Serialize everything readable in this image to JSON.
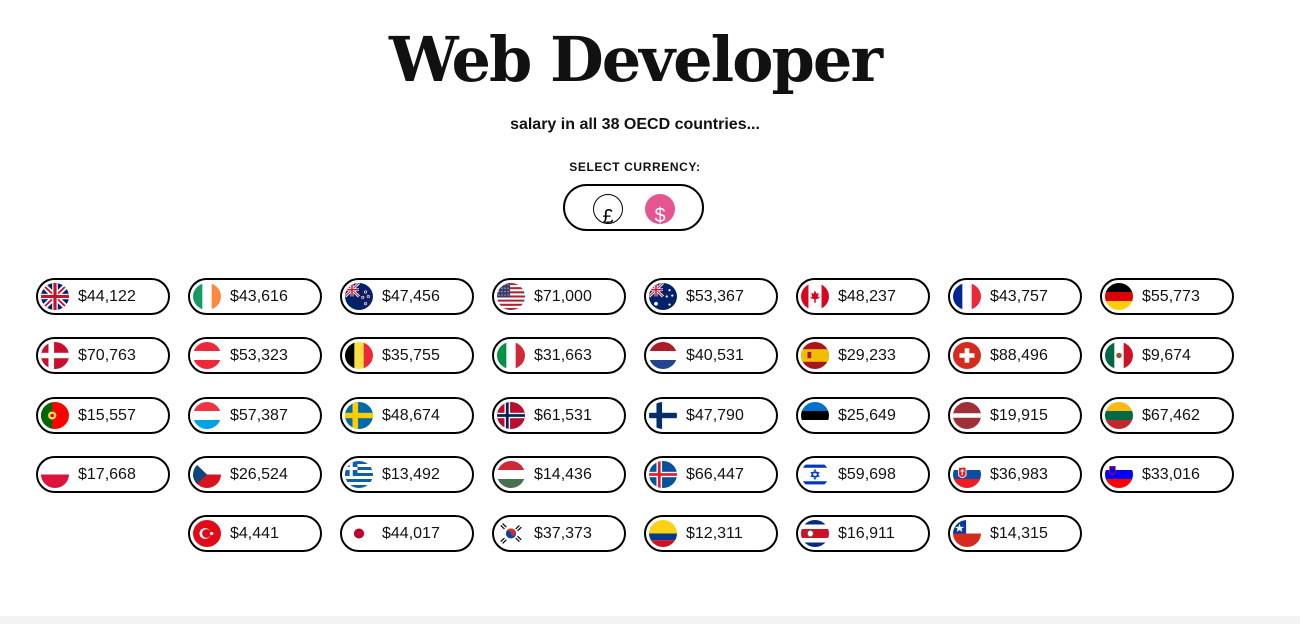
{
  "header": {
    "title": "Web Developer",
    "subtitle": "salary in all 38 OECD countries...",
    "currency_label": "SELECT CURRENCY:"
  },
  "currency": {
    "options": [
      {
        "symbol": "£",
        "icon": "pound-icon",
        "selected": false
      },
      {
        "symbol": "$",
        "icon": "dollar-icon",
        "selected": true
      }
    ],
    "accent_color": "#e45592"
  },
  "countries": [
    {
      "flag": "uk-flag-icon",
      "salary": "$44,122"
    },
    {
      "flag": "ireland-flag-icon",
      "salary": "$43,616"
    },
    {
      "flag": "new-zealand-flag-icon",
      "salary": "$47,456"
    },
    {
      "flag": "usa-flag-icon",
      "salary": "$71,000"
    },
    {
      "flag": "australia-flag-icon",
      "salary": "$53,367"
    },
    {
      "flag": "canada-flag-icon",
      "salary": "$48,237"
    },
    {
      "flag": "france-flag-icon",
      "salary": "$43,757"
    },
    {
      "flag": "germany-flag-icon",
      "salary": "$55,773"
    },
    {
      "flag": "denmark-flag-icon",
      "salary": "$70,763"
    },
    {
      "flag": "austria-flag-icon",
      "salary": "$53,323"
    },
    {
      "flag": "belgium-flag-icon",
      "salary": "$35,755"
    },
    {
      "flag": "italy-flag-icon",
      "salary": "$31,663"
    },
    {
      "flag": "netherlands-flag-icon",
      "salary": "$40,531"
    },
    {
      "flag": "spain-flag-icon",
      "salary": "$29,233"
    },
    {
      "flag": "switzerland-flag-icon",
      "salary": "$88,496"
    },
    {
      "flag": "mexico-flag-icon",
      "salary": "$9,674"
    },
    {
      "flag": "portugal-flag-icon",
      "salary": "$15,557"
    },
    {
      "flag": "luxembourg-flag-icon",
      "salary": "$57,387"
    },
    {
      "flag": "sweden-flag-icon",
      "salary": "$48,674"
    },
    {
      "flag": "norway-flag-icon",
      "salary": "$61,531"
    },
    {
      "flag": "finland-flag-icon",
      "salary": "$47,790"
    },
    {
      "flag": "estonia-flag-icon",
      "salary": "$25,649"
    },
    {
      "flag": "latvia-flag-icon",
      "salary": "$19,915"
    },
    {
      "flag": "lithuania-flag-icon",
      "salary": "$67,462"
    },
    {
      "flag": "poland-flag-icon",
      "salary": "$17,668"
    },
    {
      "flag": "czechia-flag-icon",
      "salary": "$26,524"
    },
    {
      "flag": "greece-flag-icon",
      "salary": "$13,492"
    },
    {
      "flag": "hungary-flag-icon",
      "salary": "$14,436"
    },
    {
      "flag": "iceland-flag-icon",
      "salary": "$66,447"
    },
    {
      "flag": "israel-flag-icon",
      "salary": "$59,698"
    },
    {
      "flag": "slovakia-flag-icon",
      "salary": "$36,983"
    },
    {
      "flag": "slovenia-flag-icon",
      "salary": "$33,016"
    },
    {
      "flag": "turkey-flag-icon",
      "salary": "$4,441"
    },
    {
      "flag": "japan-flag-icon",
      "salary": "$44,017"
    },
    {
      "flag": "south-korea-flag-icon",
      "salary": "$37,373"
    },
    {
      "flag": "colombia-flag-icon",
      "salary": "$12,311"
    },
    {
      "flag": "costa-rica-flag-icon",
      "salary": "$16,911"
    },
    {
      "flag": "chile-flag-icon",
      "salary": "$14,315"
    }
  ]
}
